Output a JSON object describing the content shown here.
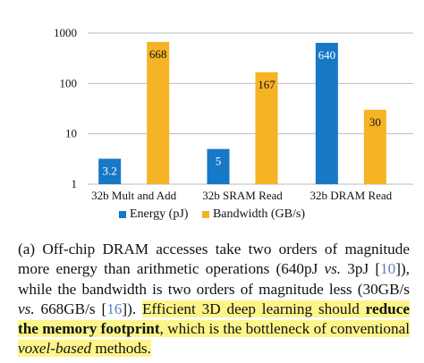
{
  "chart_data": {
    "type": "bar",
    "scale": "log",
    "ylim": [
      1,
      1000
    ],
    "yticks": [
      "1",
      "10",
      "100",
      "1000"
    ],
    "categories": [
      "32b Mult and Add",
      "32b SRAM Read",
      "32b DRAM Read"
    ],
    "series": [
      {
        "name": "Energy (pJ)",
        "values": [
          3.2,
          5,
          640
        ],
        "labels": [
          "3.2",
          "5",
          "640"
        ],
        "color": "#1778c6"
      },
      {
        "name": "Bandwidth (GB/s)",
        "values": [
          668,
          167,
          30
        ],
        "labels": [
          "668",
          "167",
          "30"
        ],
        "color": "#f5b325"
      }
    ],
    "grid": true,
    "legend_position": "bottom"
  },
  "caption": {
    "part1": "(a) Off-chip DRAM accesses take two orders of magnitude more energy than arithmetic operations (640pJ ",
    "vs1": "vs.",
    "part2": " 3pJ [",
    "ref1": "10",
    "part3": "]), while the bandwidth is two orders of magnitude less (30GB/s ",
    "vs2": "vs.",
    "part4": " 668GB/s [",
    "ref2": "16",
    "part5": "]). ",
    "hl1": "Efficient 3D deep learning should ",
    "hl_bold": "reduce the memory footprint",
    "hl2": ", which is the bottleneck of conventional ",
    "hl_ital": "voxel-based",
    "hl3": " methods."
  }
}
